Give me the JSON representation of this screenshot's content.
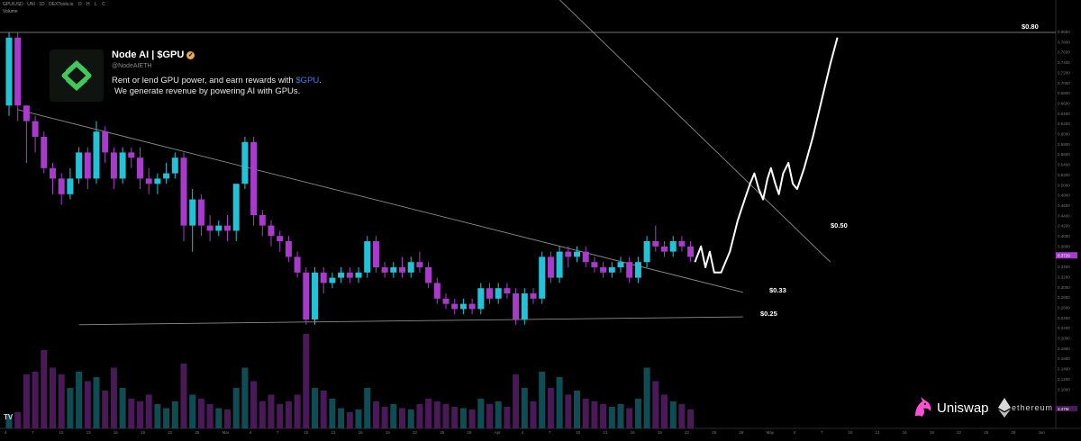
{
  "header": {
    "symbol": "GPU/USD · UNI · 1D · DEXTools.io",
    "ohlc": [
      "O",
      "C",
      "H",
      "L",
      "C"
    ],
    "volume_label": "Volume"
  },
  "card": {
    "title": "Node AI | $GPU",
    "verified_icon": "verified-badge-icon",
    "handle": "@NodeAIETH",
    "desc_pre": "Rent or lend GPU power, and earn rewards with ",
    "desc_ticker": "$GPU",
    "desc_post": ".",
    "desc_line2": "We generate revenue by powering AI with GPUs."
  },
  "branding": {
    "exchange": "Uniswap",
    "chain": "ethereum",
    "exchange_icon": "unicorn-icon",
    "chain_icon": "ethereum-icon",
    "platform_icon": "tradingview-icon"
  },
  "colors": {
    "up": "#22c3d6",
    "down": "#a93bcc",
    "up_volume": "#0f4d55",
    "down_volume": "#4a1a58",
    "trendline": "#8c8c8c",
    "projection": "#ffffff",
    "last_price_tag": "#a93bcc"
  },
  "chart_data": {
    "type": "candlestick",
    "title": "",
    "ylim": [
      0.1,
      0.82
    ],
    "x_tick_labels": [
      "4",
      "7",
      "10",
      "13",
      "16",
      "19",
      "22",
      "25",
      "Mar",
      "4",
      "7",
      "10",
      "13",
      "16",
      "19",
      "22",
      "25",
      "28",
      "Apr",
      "4",
      "7",
      "10",
      "13",
      "16",
      "19",
      "22",
      "25",
      "28",
      "May",
      "4",
      "7",
      "10",
      "13",
      "16",
      "19",
      "22",
      "25",
      "28",
      "Jun"
    ],
    "y_tick_labels": [
      "0.8000",
      "0.7800",
      "0.7600",
      "0.7400",
      "0.7200",
      "0.7000",
      "0.6800",
      "0.6600",
      "0.6400",
      "0.6200",
      "0.6000",
      "0.5800",
      "0.5600",
      "0.5400",
      "0.5200",
      "0.5000",
      "0.4800",
      "0.4600",
      "0.4400",
      "0.4200",
      "0.4000",
      "0.3800",
      "0.3600",
      "0.3400",
      "0.3200",
      "0.3000",
      "0.2800",
      "0.2600",
      "0.2400",
      "0.2200",
      "0.2000",
      "0.1800",
      "0.1600",
      "0.1400",
      "0.1200",
      "0.1000"
    ],
    "last_price": "0.3729",
    "volume_axis_label": "3.47M",
    "candles": [
      [
        0.66,
        0.79,
        0.8,
        0.64
      ],
      [
        0.79,
        0.66,
        0.8,
        0.63
      ],
      [
        0.66,
        0.63,
        0.66,
        0.55
      ],
      [
        0.63,
        0.6,
        0.64,
        0.57
      ],
      [
        0.6,
        0.54,
        0.61,
        0.53
      ],
      [
        0.54,
        0.52,
        0.55,
        0.49
      ],
      [
        0.52,
        0.49,
        0.53,
        0.47
      ],
      [
        0.49,
        0.52,
        0.54,
        0.48
      ],
      [
        0.52,
        0.57,
        0.58,
        0.51
      ],
      [
        0.57,
        0.52,
        0.58,
        0.5
      ],
      [
        0.52,
        0.61,
        0.63,
        0.51
      ],
      [
        0.61,
        0.57,
        0.62,
        0.55
      ],
      [
        0.57,
        0.52,
        0.58,
        0.5
      ],
      [
        0.52,
        0.57,
        0.58,
        0.51
      ],
      [
        0.57,
        0.56,
        0.58,
        0.54
      ],
      [
        0.56,
        0.52,
        0.58,
        0.5
      ],
      [
        0.52,
        0.51,
        0.54,
        0.49
      ],
      [
        0.51,
        0.52,
        0.53,
        0.49
      ],
      [
        0.52,
        0.53,
        0.55,
        0.51
      ],
      [
        0.53,
        0.56,
        0.57,
        0.52
      ],
      [
        0.56,
        0.43,
        0.57,
        0.4
      ],
      [
        0.43,
        0.48,
        0.5,
        0.38
      ],
      [
        0.48,
        0.43,
        0.49,
        0.41
      ],
      [
        0.43,
        0.42,
        0.45,
        0.4
      ],
      [
        0.42,
        0.43,
        0.44,
        0.41
      ],
      [
        0.43,
        0.42,
        0.45,
        0.4
      ],
      [
        0.42,
        0.51,
        0.51,
        0.4
      ],
      [
        0.51,
        0.59,
        0.6,
        0.5
      ],
      [
        0.59,
        0.45,
        0.6,
        0.43
      ],
      [
        0.45,
        0.43,
        0.46,
        0.41
      ],
      [
        0.43,
        0.41,
        0.44,
        0.39
      ],
      [
        0.41,
        0.4,
        0.42,
        0.38
      ],
      [
        0.4,
        0.37,
        0.41,
        0.36
      ],
      [
        0.37,
        0.34,
        0.38,
        0.33
      ],
      [
        0.34,
        0.25,
        0.35,
        0.24
      ],
      [
        0.25,
        0.34,
        0.35,
        0.24
      ],
      [
        0.34,
        0.32,
        0.35,
        0.3
      ],
      [
        0.32,
        0.33,
        0.34,
        0.31
      ],
      [
        0.33,
        0.34,
        0.35,
        0.32
      ],
      [
        0.34,
        0.33,
        0.35,
        0.32
      ],
      [
        0.33,
        0.34,
        0.35,
        0.32
      ],
      [
        0.34,
        0.4,
        0.41,
        0.33
      ],
      [
        0.4,
        0.35,
        0.41,
        0.34
      ],
      [
        0.35,
        0.34,
        0.36,
        0.33
      ],
      [
        0.34,
        0.35,
        0.36,
        0.33
      ],
      [
        0.35,
        0.34,
        0.37,
        0.33
      ],
      [
        0.34,
        0.36,
        0.37,
        0.33
      ],
      [
        0.36,
        0.35,
        0.38,
        0.34
      ],
      [
        0.35,
        0.32,
        0.36,
        0.31
      ],
      [
        0.32,
        0.29,
        0.33,
        0.28
      ],
      [
        0.29,
        0.28,
        0.3,
        0.27
      ],
      [
        0.28,
        0.27,
        0.29,
        0.26
      ],
      [
        0.27,
        0.28,
        0.29,
        0.26
      ],
      [
        0.28,
        0.27,
        0.29,
        0.26
      ],
      [
        0.27,
        0.31,
        0.32,
        0.26
      ],
      [
        0.31,
        0.29,
        0.32,
        0.28
      ],
      [
        0.29,
        0.31,
        0.32,
        0.28
      ],
      [
        0.31,
        0.3,
        0.32,
        0.29
      ],
      [
        0.3,
        0.25,
        0.31,
        0.24
      ],
      [
        0.25,
        0.3,
        0.31,
        0.24
      ],
      [
        0.3,
        0.29,
        0.31,
        0.28
      ],
      [
        0.29,
        0.37,
        0.38,
        0.28
      ],
      [
        0.37,
        0.33,
        0.38,
        0.32
      ],
      [
        0.33,
        0.38,
        0.39,
        0.32
      ],
      [
        0.38,
        0.37,
        0.39,
        0.35
      ],
      [
        0.37,
        0.38,
        0.39,
        0.36
      ],
      [
        0.38,
        0.36,
        0.39,
        0.35
      ],
      [
        0.36,
        0.35,
        0.37,
        0.34
      ],
      [
        0.35,
        0.34,
        0.36,
        0.33
      ],
      [
        0.34,
        0.35,
        0.36,
        0.33
      ],
      [
        0.35,
        0.36,
        0.37,
        0.34
      ],
      [
        0.36,
        0.33,
        0.37,
        0.32
      ],
      [
        0.33,
        0.36,
        0.37,
        0.32
      ],
      [
        0.36,
        0.4,
        0.41,
        0.35
      ],
      [
        0.4,
        0.39,
        0.43,
        0.38
      ],
      [
        0.39,
        0.38,
        0.4,
        0.37
      ],
      [
        0.38,
        0.4,
        0.41,
        0.37
      ],
      [
        0.4,
        0.39,
        0.41,
        0.38
      ],
      [
        0.39,
        0.37,
        0.4,
        0.36
      ]
    ],
    "volumes": [
      0.1,
      0.12,
      0.4,
      0.42,
      0.58,
      0.45,
      0.4,
      0.3,
      0.42,
      0.35,
      0.38,
      0.28,
      0.45,
      0.3,
      0.22,
      0.2,
      0.25,
      0.18,
      0.15,
      0.2,
      0.48,
      0.25,
      0.22,
      0.18,
      0.15,
      0.14,
      0.3,
      0.45,
      0.35,
      0.2,
      0.25,
      0.18,
      0.2,
      0.25,
      0.7,
      0.3,
      0.28,
      0.22,
      0.15,
      0.12,
      0.14,
      0.3,
      0.2,
      0.16,
      0.18,
      0.15,
      0.14,
      0.18,
      0.22,
      0.2,
      0.18,
      0.16,
      0.15,
      0.14,
      0.22,
      0.18,
      0.2,
      0.16,
      0.4,
      0.3,
      0.2,
      0.42,
      0.3,
      0.38,
      0.25,
      0.28,
      0.22,
      0.2,
      0.18,
      0.16,
      0.18,
      0.15,
      0.22,
      0.45,
      0.35,
      0.25,
      0.2,
      0.18,
      0.14
    ],
    "levels": [
      {
        "label": "$0.80",
        "value": 0.8
      },
      {
        "label": "$0.50",
        "value": 0.5
      },
      {
        "label": "$0.33",
        "value": 0.33
      },
      {
        "label": "$0.25",
        "value": 0.25
      }
    ],
    "trendlines": [
      {
        "name": "descending-resistance",
        "from": [
          1,
          0.652
        ],
        "to": [
          84,
          0.302
        ]
      },
      {
        "name": "horizontal-support",
        "from": [
          8,
          0.24
        ],
        "to": [
          84,
          0.255
        ]
      },
      {
        "name": "upper-channel",
        "from": [
          57,
          0.96
        ],
        "to": [
          94,
          0.36
        ]
      }
    ],
    "projection": [
      [
        78.5,
        0.36
      ],
      [
        79.2,
        0.39
      ],
      [
        79.7,
        0.35
      ],
      [
        80.2,
        0.38
      ],
      [
        80.7,
        0.34
      ],
      [
        81.5,
        0.34
      ],
      [
        82.5,
        0.38
      ],
      [
        83.4,
        0.44
      ],
      [
        84.2,
        0.48
      ],
      [
        84.8,
        0.51
      ],
      [
        85.3,
        0.53
      ],
      [
        85.8,
        0.5
      ],
      [
        86.3,
        0.48
      ],
      [
        86.8,
        0.52
      ],
      [
        87.2,
        0.54
      ],
      [
        87.7,
        0.51
      ],
      [
        88.1,
        0.49
      ],
      [
        88.6,
        0.53
      ],
      [
        89.2,
        0.55
      ],
      [
        89.7,
        0.51
      ],
      [
        90.2,
        0.5
      ],
      [
        91.0,
        0.54
      ],
      [
        92.0,
        0.6
      ],
      [
        93.0,
        0.67
      ],
      [
        94.0,
        0.74
      ],
      [
        94.8,
        0.79
      ]
    ]
  }
}
